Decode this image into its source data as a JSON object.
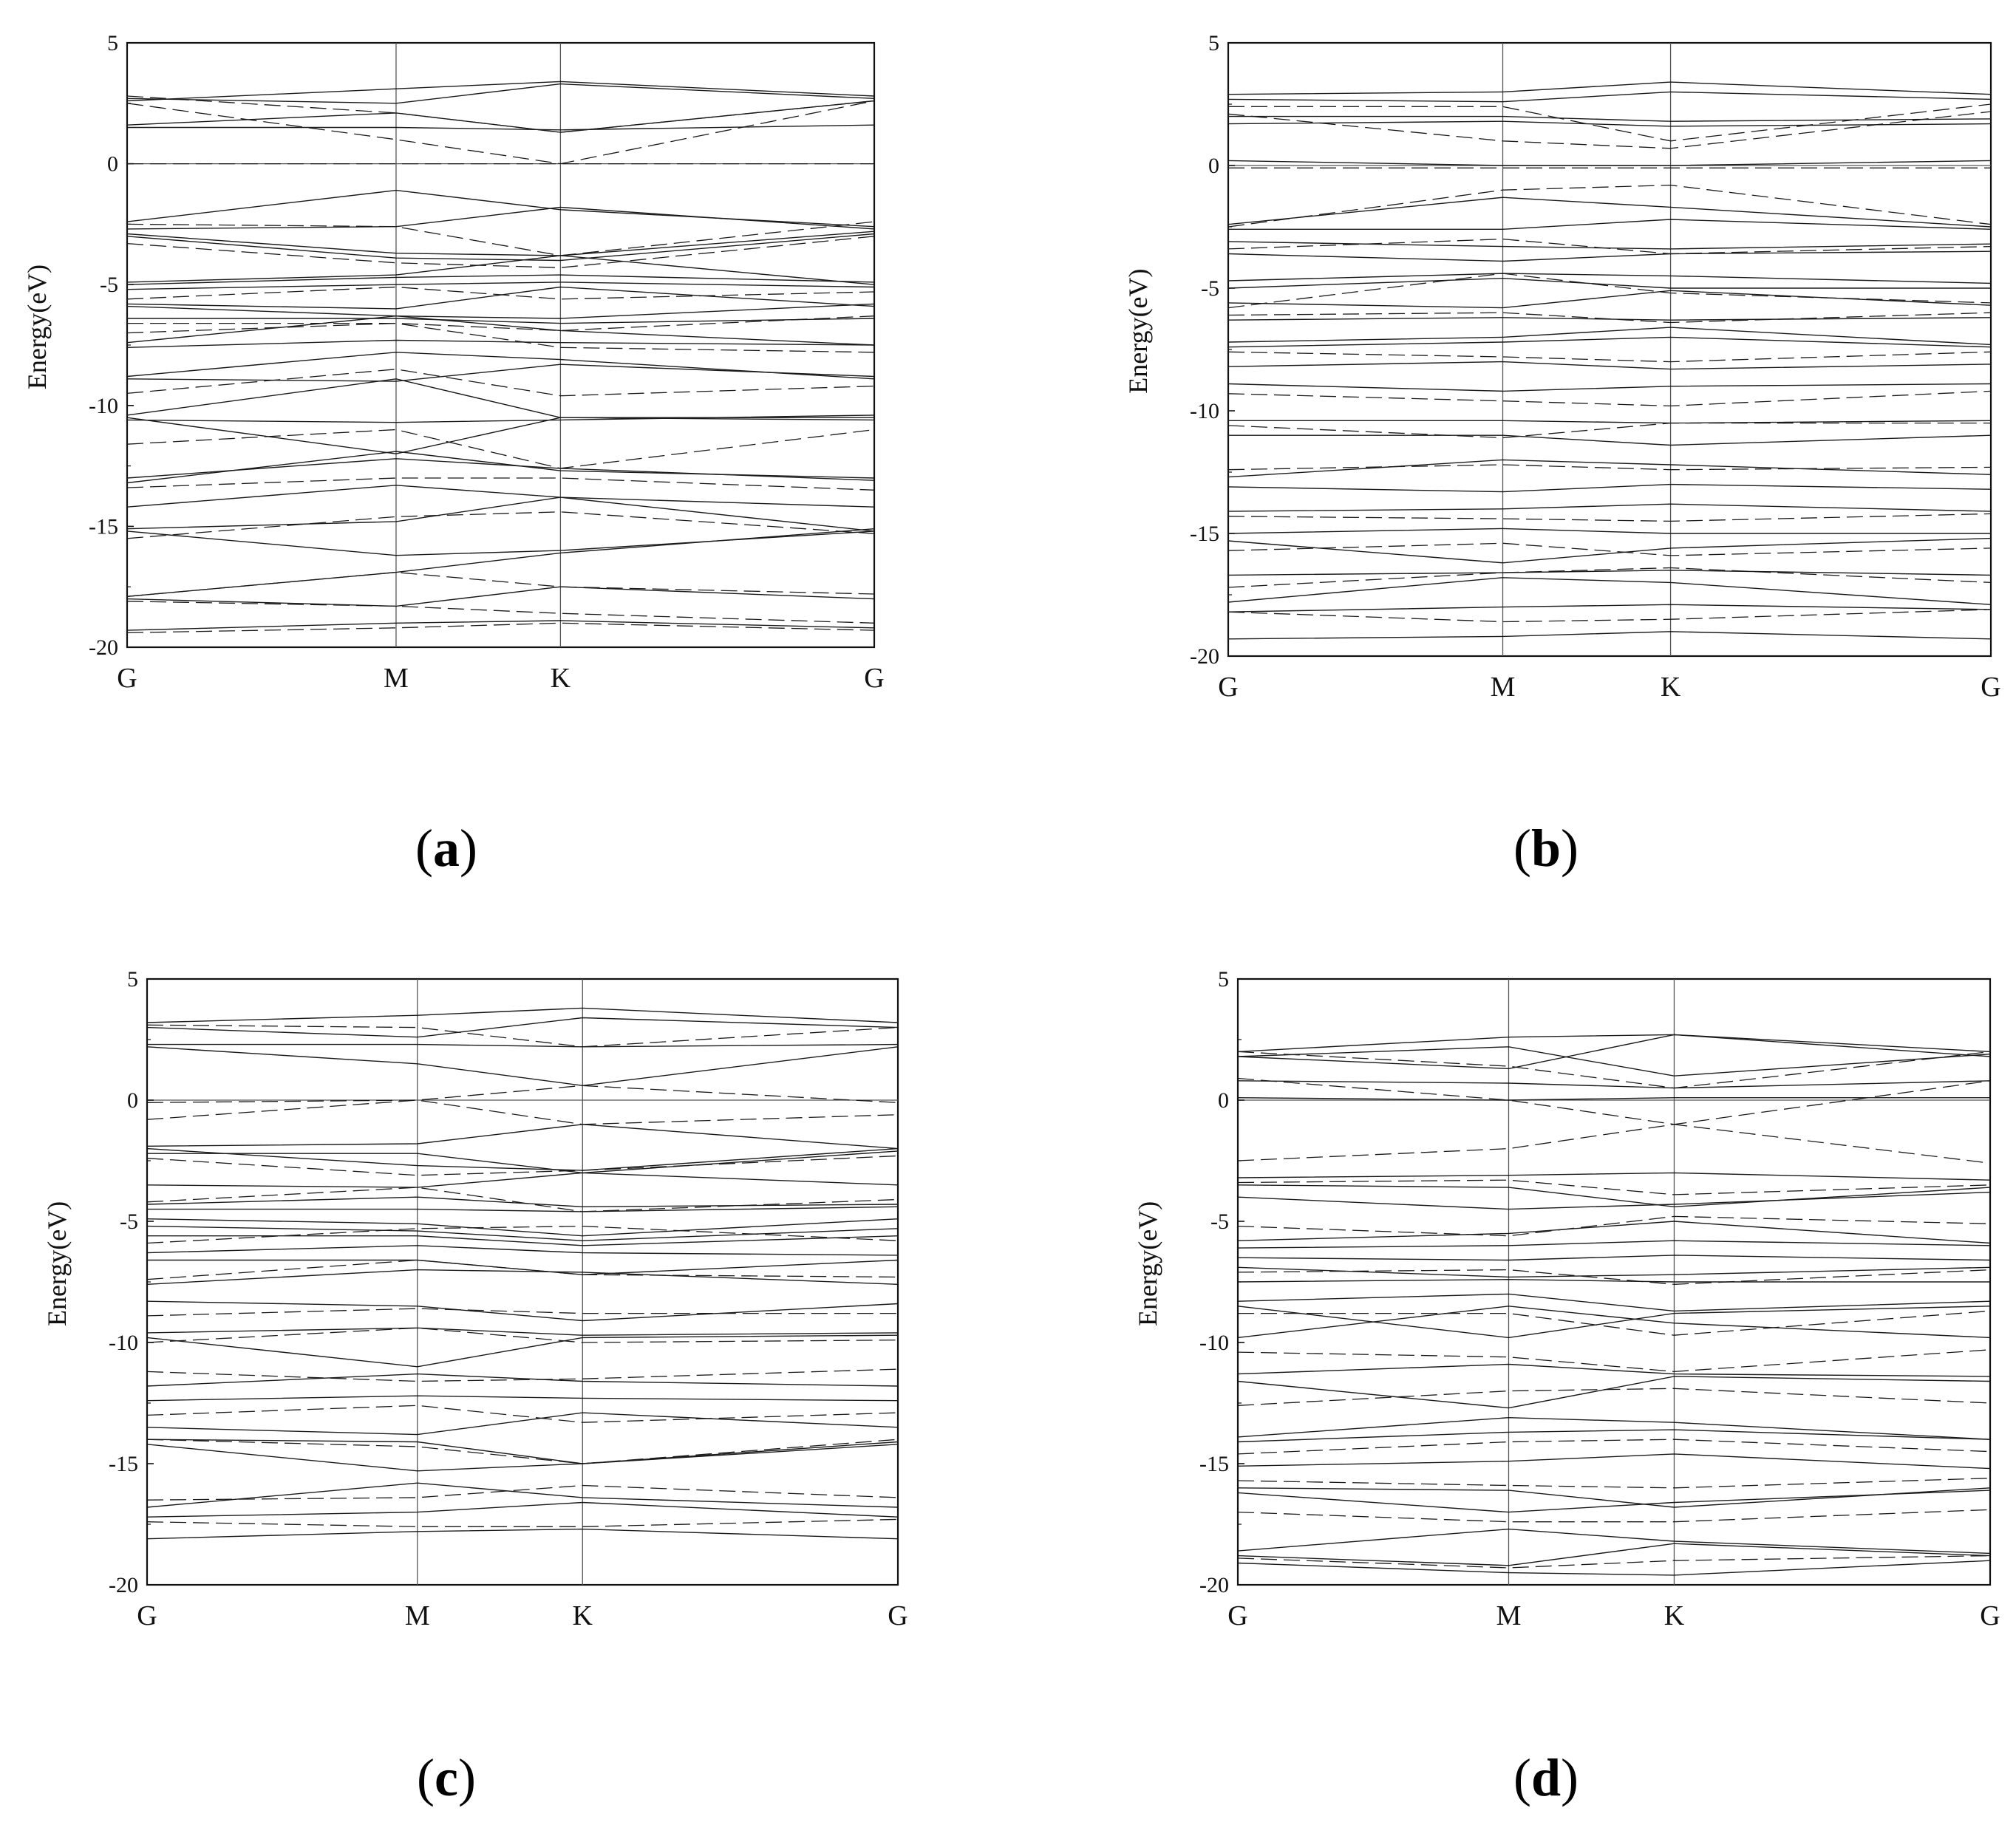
{
  "chart_data": [
    {
      "id": "a",
      "type": "line",
      "caption_letter": "a",
      "ylabel": "Energy(eV)",
      "ylim": [
        -20,
        5
      ],
      "yticks": [
        5,
        0,
        -5,
        -10,
        -15,
        -20
      ],
      "kpoints": [
        {
          "label": "G",
          "x": 0
        },
        {
          "label": "M",
          "x": 0.36
        },
        {
          "label": "K",
          "x": 0.58
        },
        {
          "label": "G",
          "x": 1
        }
      ],
      "solid_bands": [
        [
          2.7,
          2.5,
          3.3,
          2.7
        ],
        [
          1.6,
          2.1,
          1.3,
          2.6
        ],
        [
          1.5,
          1.5,
          1.4,
          1.6
        ],
        [
          2.6,
          3.1,
          3.4,
          2.8
        ],
        [
          -2.4,
          -1.1,
          -1.9,
          -2.6
        ],
        [
          -2.7,
          -2.6,
          -1.8,
          -2.7
        ],
        [
          -2.9,
          -3.7,
          -3.8,
          -2.8
        ],
        [
          -3.0,
          -3.9,
          -4.0,
          -2.9
        ],
        [
          -4.9,
          -4.6,
          -3.8,
          -5.0
        ],
        [
          -5.0,
          -4.7,
          -4.6,
          -4.9
        ],
        [
          -5.2,
          -5.0,
          -4.9,
          -5.1
        ],
        [
          -5.8,
          -6.0,
          -5.1,
          -5.9
        ],
        [
          -5.9,
          -6.3,
          -6.4,
          -5.8
        ],
        [
          -6.4,
          -6.4,
          -6.6,
          -6.4
        ],
        [
          -7.4,
          -6.3,
          -6.9,
          -7.5
        ],
        [
          -7.6,
          -7.3,
          -7.4,
          -7.5
        ],
        [
          -8.8,
          -7.8,
          -8.1,
          -8.9
        ],
        [
          -8.9,
          -9.0,
          -8.3,
          -8.8
        ],
        [
          -10.4,
          -8.9,
          -10.5,
          -10.5
        ],
        [
          -10.6,
          -10.7,
          -10.6,
          -10.4
        ],
        [
          -10.5,
          -12.0,
          -10.5,
          -10.6
        ],
        [
          -13.0,
          -12.2,
          -12.6,
          -13.1
        ],
        [
          -13.2,
          -11.9,
          -12.7,
          -13.0
        ],
        [
          -14.2,
          -13.3,
          -13.8,
          -14.2
        ],
        [
          -15.1,
          -14.8,
          -13.8,
          -15.2
        ],
        [
          -15.2,
          -16.2,
          -16.0,
          -15.2
        ],
        [
          -17.9,
          -16.9,
          -16.1,
          -15.1
        ],
        [
          -18.0,
          -18.3,
          -17.5,
          -18.0
        ],
        [
          -19.3,
          -19.0,
          -18.9,
          -19.2
        ]
      ],
      "dashed_bands": [
        [
          2.8,
          2.1,
          1.3,
          2.6
        ],
        [
          2.5,
          1.0,
          0.0,
          2.6
        ],
        [
          0.0,
          0.0,
          0.0,
          0.0
        ],
        [
          -2.5,
          -2.6,
          -3.8,
          -2.4
        ],
        [
          -3.3,
          -4.1,
          -4.3,
          -3.0
        ],
        [
          -5.6,
          -5.1,
          -5.6,
          -5.3
        ],
        [
          -6.6,
          -6.6,
          -6.9,
          -6.3
        ],
        [
          -7.0,
          -6.6,
          -7.6,
          -7.8
        ],
        [
          -9.5,
          -8.5,
          -9.6,
          -9.2
        ],
        [
          -11.6,
          -11.0,
          -12.6,
          -11.0
        ],
        [
          -13.4,
          -13.0,
          -13.0,
          -13.5
        ],
        [
          -15.5,
          -14.6,
          -14.4,
          -15.3
        ],
        [
          -17.9,
          -16.9,
          -17.5,
          -17.8
        ],
        [
          -18.1,
          -18.3,
          -18.6,
          -19.0
        ],
        [
          -19.4,
          -19.2,
          -19.0,
          -19.3
        ]
      ]
    },
    {
      "id": "b",
      "type": "line",
      "caption_letter": "b",
      "ylabel": "Energy(eV)",
      "ylim": [
        -20,
        5
      ],
      "yticks": [
        5,
        0,
        -5,
        -10,
        -15,
        -20
      ],
      "kpoints": [
        {
          "label": "G",
          "x": 0
        },
        {
          "label": "M",
          "x": 0.36
        },
        {
          "label": "K",
          "x": 0.58
        },
        {
          "label": "G",
          "x": 1
        }
      ],
      "solid_bands": [
        [
          2.9,
          3.0,
          3.4,
          2.9
        ],
        [
          2.7,
          2.6,
          3.0,
          2.7
        ],
        [
          2.0,
          2.0,
          1.8,
          1.9
        ],
        [
          1.7,
          1.8,
          1.6,
          1.7
        ],
        [
          0.2,
          0.0,
          0.0,
          0.2
        ],
        [
          -2.4,
          -1.3,
          -1.7,
          -2.5
        ],
        [
          -2.6,
          -2.6,
          -2.2,
          -2.6
        ],
        [
          -3.1,
          -3.3,
          -3.4,
          -3.2
        ],
        [
          -3.6,
          -3.9,
          -3.6,
          -3.5
        ],
        [
          -4.7,
          -4.4,
          -4.5,
          -4.8
        ],
        [
          -5.0,
          -4.6,
          -5.0,
          -5.0
        ],
        [
          -5.6,
          -5.8,
          -5.1,
          -5.7
        ],
        [
          -6.3,
          -6.2,
          -6.3,
          -6.2
        ],
        [
          -7.2,
          -7.0,
          -6.6,
          -7.3
        ],
        [
          -7.4,
          -7.2,
          -7.0,
          -7.4
        ],
        [
          -8.2,
          -8.0,
          -8.3,
          -8.1
        ],
        [
          -8.9,
          -9.2,
          -9.0,
          -8.9
        ],
        [
          -10.4,
          -10.4,
          -10.5,
          -10.4
        ],
        [
          -11.0,
          -11.0,
          -11.4,
          -11.0
        ],
        [
          -12.7,
          -12.0,
          -12.2,
          -12.6
        ],
        [
          -13.1,
          -13.3,
          -13.0,
          -13.2
        ],
        [
          -14.1,
          -14.0,
          -13.8,
          -14.1
        ],
        [
          -15.0,
          -14.8,
          -15.0,
          -15.0
        ],
        [
          -15.3,
          -16.2,
          -15.6,
          -15.2
        ],
        [
          -16.7,
          -16.6,
          -16.5,
          -16.7
        ],
        [
          -17.8,
          -16.8,
          -17.0,
          -17.9
        ],
        [
          -18.2,
          -18.0,
          -17.9,
          -18.1
        ],
        [
          -19.3,
          -19.2,
          -19.0,
          -19.3
        ]
      ],
      "dashed_bands": [
        [
          2.4,
          2.4,
          1.0,
          2.5
        ],
        [
          2.1,
          1.0,
          0.7,
          2.2
        ],
        [
          -0.1,
          -0.1,
          -0.1,
          -0.1
        ],
        [
          -2.5,
          -1.0,
          -0.8,
          -2.4
        ],
        [
          -3.4,
          -3.0,
          -3.6,
          -3.3
        ],
        [
          -5.8,
          -4.4,
          -5.2,
          -5.6
        ],
        [
          -6.1,
          -6.0,
          -6.4,
          -6.0
        ],
        [
          -7.6,
          -7.8,
          -8.0,
          -7.6
        ],
        [
          -9.3,
          -9.6,
          -9.8,
          -9.2
        ],
        [
          -10.6,
          -11.1,
          -10.5,
          -10.5
        ],
        [
          -12.4,
          -12.2,
          -12.4,
          -12.3
        ],
        [
          -14.3,
          -14.4,
          -14.5,
          -14.2
        ],
        [
          -15.7,
          -15.4,
          -15.9,
          -15.6
        ],
        [
          -17.2,
          -16.6,
          -16.4,
          -17.0
        ],
        [
          -18.2,
          -18.6,
          -18.5,
          -18.1
        ]
      ]
    },
    {
      "id": "c",
      "type": "line",
      "caption_letter": "c",
      "ylabel": "Energy(eV)",
      "ylim": [
        -20,
        5
      ],
      "yticks": [
        5,
        0,
        -5,
        -10,
        -15,
        -20
      ],
      "kpoints": [
        {
          "label": "G",
          "x": 0
        },
        {
          "label": "M",
          "x": 0.36
        },
        {
          "label": "K",
          "x": 0.58
        },
        {
          "label": "G",
          "x": 1
        }
      ],
      "solid_bands": [
        [
          3.2,
          3.5,
          3.8,
          3.2
        ],
        [
          3.0,
          2.6,
          3.4,
          3.0
        ],
        [
          2.2,
          1.5,
          0.6,
          2.2
        ],
        [
          2.3,
          2.3,
          2.2,
          2.3
        ],
        [
          -1.9,
          -1.8,
          -1.0,
          -2.0
        ],
        [
          -2.0,
          -2.7,
          -2.9,
          -2.0
        ],
        [
          -2.2,
          -2.2,
          -3.0,
          -2.1
        ],
        [
          -3.5,
          -3.6,
          -3.0,
          -3.5
        ],
        [
          -4.3,
          -4.0,
          -4.4,
          -4.3
        ],
        [
          -4.5,
          -4.5,
          -4.6,
          -4.4
        ],
        [
          -4.9,
          -5.1,
          -5.6,
          -4.9
        ],
        [
          -5.2,
          -5.4,
          -5.8,
          -5.3
        ],
        [
          -5.6,
          -5.6,
          -6.0,
          -5.6
        ],
        [
          -6.3,
          -6.0,
          -6.3,
          -6.4
        ],
        [
          -6.6,
          -6.6,
          -7.2,
          -6.6
        ],
        [
          -7.6,
          -7.0,
          -7.1,
          -7.6
        ],
        [
          -8.3,
          -8.5,
          -9.1,
          -8.4
        ],
        [
          -9.6,
          -9.4,
          -9.7,
          -9.6
        ],
        [
          -9.8,
          -11.0,
          -9.8,
          -9.7
        ],
        [
          -11.8,
          -11.3,
          -11.6,
          -11.8
        ],
        [
          -12.4,
          -12.2,
          -12.3,
          -12.4
        ],
        [
          -13.5,
          -13.8,
          -12.9,
          -13.5
        ],
        [
          -14.0,
          -14.1,
          -15.0,
          -14.1
        ],
        [
          -14.2,
          -15.3,
          -15.0,
          -14.2
        ],
        [
          -16.8,
          -15.8,
          -16.4,
          -16.8
        ],
        [
          -17.2,
          -17.0,
          -16.6,
          -17.2
        ],
        [
          -18.1,
          -17.8,
          -17.7,
          -18.1
        ]
      ],
      "dashed_bands": [
        [
          3.1,
          3.0,
          2.2,
          3.0
        ],
        [
          -0.1,
          0.0,
          0.6,
          -0.1
        ],
        [
          -0.8,
          0.0,
          -1.0,
          -0.6
        ],
        [
          -2.4,
          -3.1,
          -2.9,
          -2.3
        ],
        [
          -4.2,
          -3.6,
          -4.6,
          -4.1
        ],
        [
          -5.9,
          -5.3,
          -5.2,
          -5.8
        ],
        [
          -7.4,
          -6.6,
          -7.2,
          -7.3
        ],
        [
          -8.9,
          -8.6,
          -8.8,
          -8.8
        ],
        [
          -10.0,
          -9.4,
          -10.0,
          -9.9
        ],
        [
          -11.2,
          -11.6,
          -11.5,
          -11.1
        ],
        [
          -13.0,
          -12.6,
          -13.3,
          -12.9
        ],
        [
          -14.0,
          -14.3,
          -15.0,
          -14.0
        ],
        [
          -16.5,
          -16.4,
          -15.9,
          -16.4
        ],
        [
          -17.4,
          -17.6,
          -17.6,
          -17.3
        ]
      ]
    },
    {
      "id": "d",
      "type": "line",
      "caption_letter": "d",
      "ylabel": "Energy(eV)",
      "ylim": [
        -20,
        5
      ],
      "yticks": [
        5,
        0,
        -5,
        -10,
        -15,
        -20
      ],
      "kpoints": [
        {
          "label": "G",
          "x": 0
        },
        {
          "label": "M",
          "x": 0.36
        },
        {
          "label": "K",
          "x": 0.58
        },
        {
          "label": "G",
          "x": 1
        }
      ],
      "solid_bands": [
        [
          2.0,
          2.6,
          2.7,
          2.0
        ],
        [
          1.8,
          1.3,
          2.7,
          1.8
        ],
        [
          1.8,
          2.2,
          1.0,
          1.9
        ],
        [
          0.8,
          0.7,
          0.5,
          0.8
        ],
        [
          0.1,
          0.0,
          0.1,
          0.1
        ],
        [
          -3.2,
          -3.1,
          -3.0,
          -3.3
        ],
        [
          -3.5,
          -3.6,
          -4.4,
          -3.6
        ],
        [
          -4.0,
          -4.5,
          -4.3,
          -3.8
        ],
        [
          -5.8,
          -5.5,
          -5.0,
          -5.9
        ],
        [
          -6.1,
          -6.0,
          -5.8,
          -6.0
        ],
        [
          -6.5,
          -6.6,
          -6.4,
          -6.6
        ],
        [
          -6.9,
          -7.3,
          -7.2,
          -6.9
        ],
        [
          -7.5,
          -7.4,
          -7.5,
          -7.5
        ],
        [
          -8.3,
          -8.0,
          -8.7,
          -8.3
        ],
        [
          -8.5,
          -9.8,
          -8.8,
          -8.5
        ],
        [
          -9.8,
          -8.5,
          -9.2,
          -9.8
        ],
        [
          -11.3,
          -10.9,
          -11.3,
          -11.4
        ],
        [
          -11.6,
          -12.7,
          -11.4,
          -11.6
        ],
        [
          -13.9,
          -13.1,
          -13.3,
          -14.0
        ],
        [
          -14.1,
          -13.7,
          -13.6,
          -14.0
        ],
        [
          -15.1,
          -14.9,
          -14.6,
          -15.2
        ],
        [
          -16.0,
          -16.1,
          -16.8,
          -16.0
        ],
        [
          -16.2,
          -17.0,
          -16.6,
          -16.1
        ],
        [
          -18.6,
          -17.7,
          -18.2,
          -18.7
        ],
        [
          -18.8,
          -19.2,
          -18.3,
          -18.8
        ],
        [
          -19.1,
          -19.5,
          -19.6,
          -19.0
        ]
      ],
      "dashed_bands": [
        [
          2.0,
          1.4,
          0.5,
          2.0
        ],
        [
          0.9,
          0.0,
          -1.0,
          0.8
        ],
        [
          -2.5,
          -2.0,
          -1.0,
          -2.6
        ],
        [
          -3.4,
          -3.3,
          -3.9,
          -3.5
        ],
        [
          -5.2,
          -5.6,
          -4.8,
          -5.1
        ],
        [
          -7.1,
          -7.0,
          -7.6,
          -7.0
        ],
        [
          -8.8,
          -8.8,
          -9.7,
          -8.7
        ],
        [
          -10.4,
          -10.6,
          -11.2,
          -10.3
        ],
        [
          -12.6,
          -12.0,
          -11.9,
          -12.5
        ],
        [
          -14.6,
          -14.1,
          -14.0,
          -14.5
        ],
        [
          -15.7,
          -15.9,
          -16.0,
          -15.6
        ],
        [
          -17.0,
          -17.4,
          -17.4,
          -16.9
        ],
        [
          -18.9,
          -19.3,
          -19.0,
          -18.8
        ]
      ]
    }
  ]
}
